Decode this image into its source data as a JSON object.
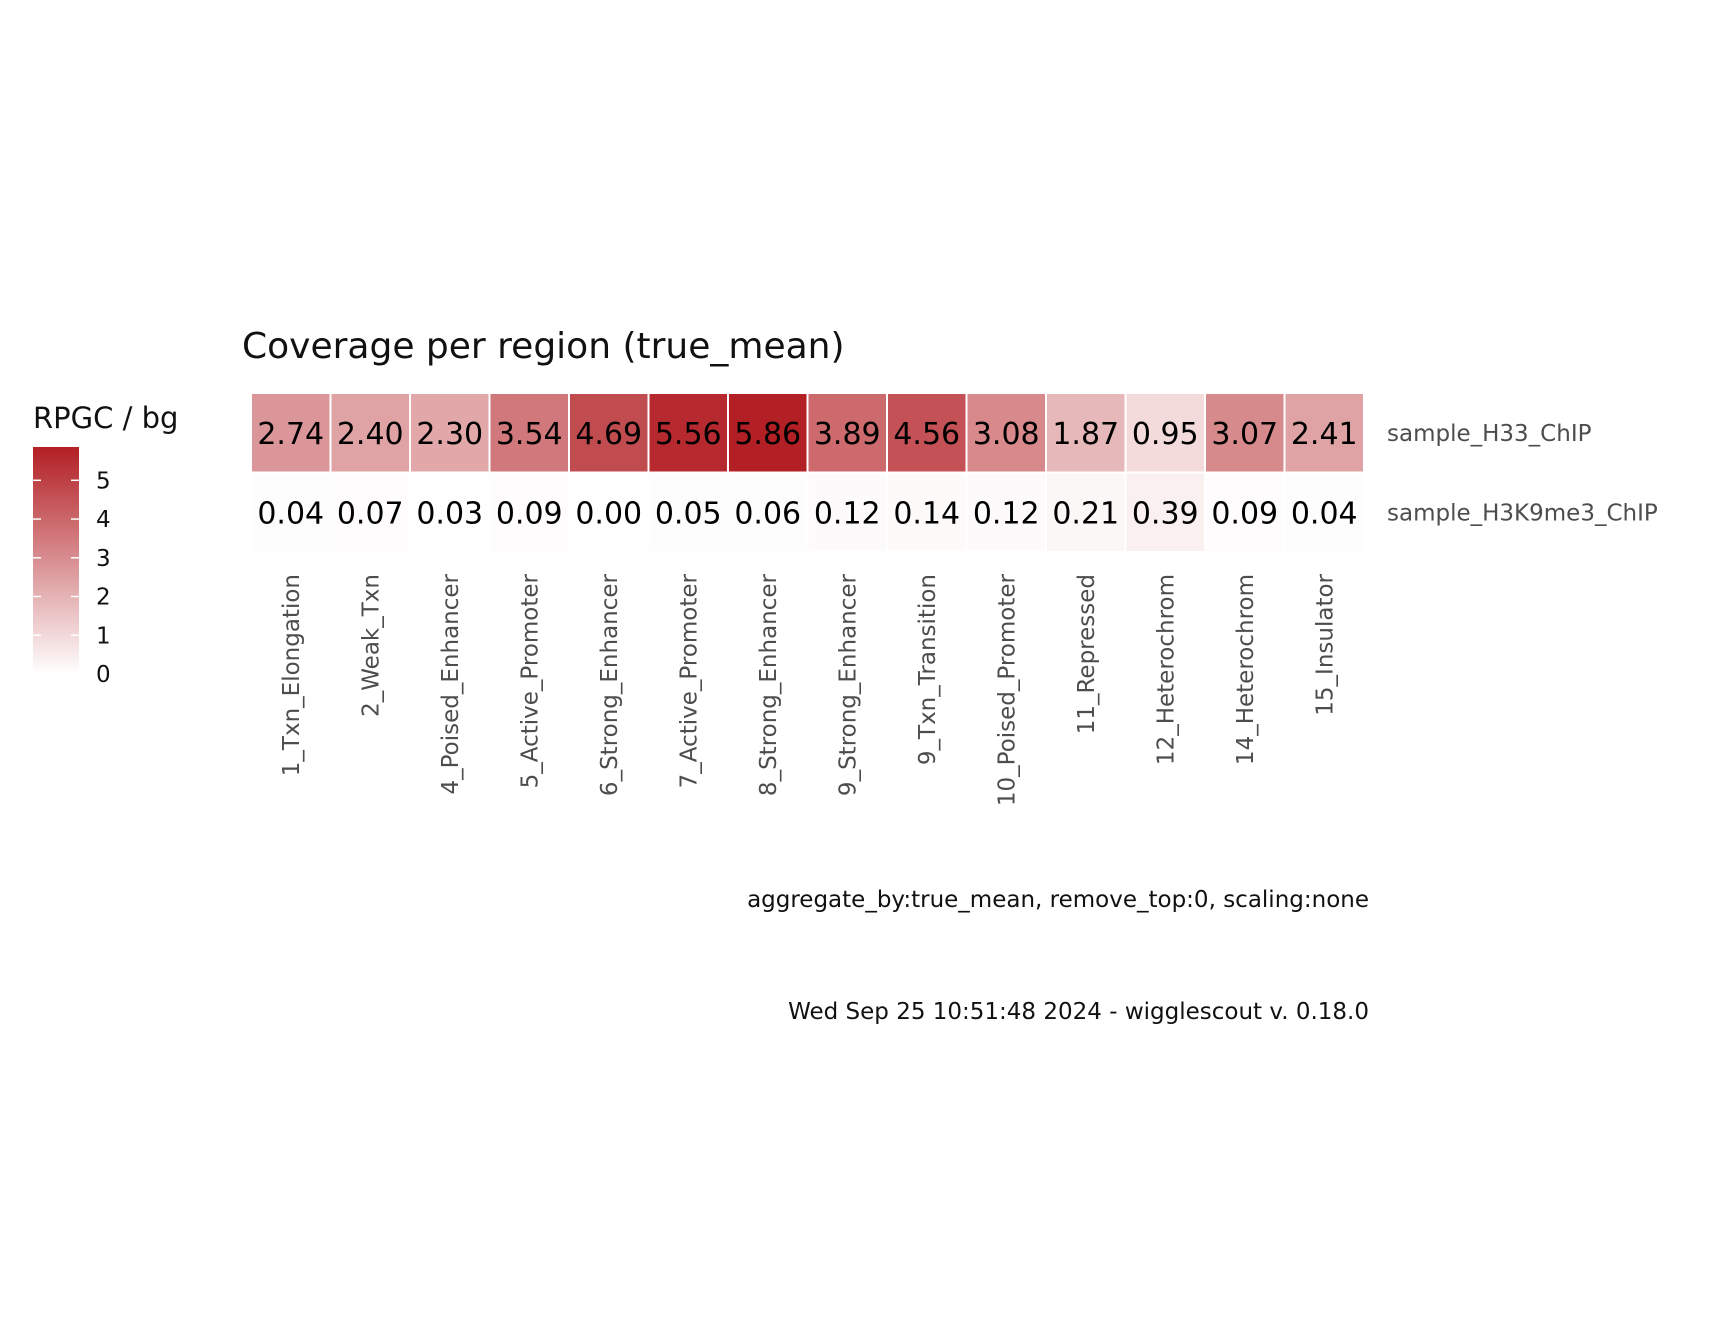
{
  "chart_data": {
    "type": "heatmap",
    "title": "Coverage per region (true_mean)",
    "legend": {
      "title": "RPGC / bg",
      "position": "left",
      "ticks": [
        0,
        1,
        2,
        3,
        4,
        5
      ],
      "tick_labels": [
        "0",
        "1",
        "2",
        "3",
        "4",
        "5"
      ],
      "range": [
        0,
        5.86
      ],
      "low_color": "#ffffff",
      "high_color": "#b21f24"
    },
    "x_categories": [
      "1_Txn_Elongation",
      "2_Weak_Txn",
      "4_Poised_Enhancer",
      "5_Active_Promoter",
      "6_Strong_Enhancer",
      "7_Active_Promoter",
      "8_Strong_Enhancer",
      "9_Strong_Enhancer",
      "9_Txn_Transition",
      "10_Poised_Promoter",
      "11_Repressed",
      "12_Heterochrom",
      "14_Heterochrom",
      "15_Insulator"
    ],
    "rows": [
      {
        "name": "sample_H33_ChIP",
        "values": [
          2.74,
          2.4,
          2.3,
          3.54,
          4.69,
          5.56,
          5.86,
          3.89,
          4.56,
          3.08,
          1.87,
          0.95,
          3.07,
          2.41
        ],
        "labels": [
          "2.74",
          "2.40",
          "2.30",
          "3.54",
          "4.69",
          "5.56",
          "5.86",
          "3.89",
          "4.56",
          "3.08",
          "1.87",
          "0.95",
          "3.07",
          "2.41"
        ]
      },
      {
        "name": "sample_H3K9me3_ChIP",
        "values": [
          0.04,
          0.07,
          0.03,
          0.09,
          0.0,
          0.05,
          0.06,
          0.12,
          0.14,
          0.12,
          0.21,
          0.39,
          0.09,
          0.04
        ],
        "labels": [
          "0.04",
          "0.07",
          "0.03",
          "0.09",
          "0.00",
          "0.05",
          "0.06",
          "0.12",
          "0.14",
          "0.12",
          "0.21",
          "0.39",
          "0.09",
          "0.04"
        ]
      }
    ],
    "caption": "aggregate_by:true_mean, remove_top:0, scaling:none",
    "footer": "Wed Sep 25 10:51:48 2024 - wigglescout v. 0.18.0",
    "grid": false
  }
}
